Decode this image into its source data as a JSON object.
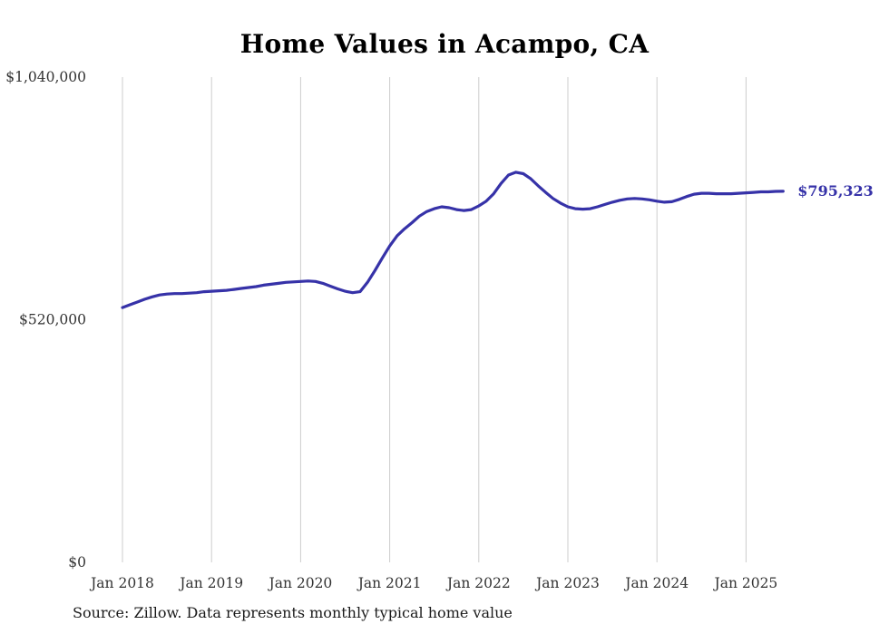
{
  "page": {
    "title": "Home Values in Acampo, CA",
    "source_note": "Source: Zillow. Data represents monthly typical home value"
  },
  "latest": {
    "label": "$795,323",
    "value": 795323
  },
  "colors": {
    "line": "#3632a8",
    "latest_label": "#3632a8",
    "grid": "#cccccc",
    "axis_text": "#333333",
    "title_text": "#000000"
  },
  "chart_data": {
    "type": "line",
    "title": "Home Values in Acampo, CA",
    "xlabel": "",
    "ylabel": "",
    "ylim": [
      0,
      1040000
    ],
    "grid": "vertical-only",
    "legend": "none",
    "x_tick_labels": [
      "Jan 2018",
      "Jan 2019",
      "Jan 2020",
      "Jan 2021",
      "Jan 2022",
      "Jan 2023",
      "Jan 2024",
      "Jan 2025"
    ],
    "y_ticks": [
      {
        "label": "$0",
        "value": 0
      },
      {
        "label": "$520,000",
        "value": 520000
      },
      {
        "label": "$1,040,000",
        "value": 1040000
      }
    ],
    "series": [
      {
        "name": "Monthly typical home value",
        "start": "2018-01",
        "frequency": "monthly",
        "values": [
          546000,
          552000,
          558000,
          564000,
          569000,
          573000,
          575000,
          576000,
          576000,
          577000,
          578000,
          580000,
          581000,
          582000,
          583000,
          585000,
          587000,
          589000,
          591000,
          594000,
          596000,
          598000,
          600000,
          601000,
          602000,
          603000,
          602000,
          598000,
          592000,
          586000,
          581000,
          578000,
          580000,
          600000,
          625000,
          652000,
          678000,
          700000,
          715000,
          728000,
          742000,
          752000,
          758000,
          762000,
          760000,
          756000,
          754000,
          756000,
          764000,
          774000,
          790000,
          812000,
          830000,
          836000,
          833000,
          822000,
          807000,
          793000,
          780000,
          770000,
          762000,
          758000,
          757000,
          758000,
          762000,
          767000,
          772000,
          776000,
          779000,
          780000,
          779000,
          777000,
          774000,
          772000,
          773000,
          778000,
          784000,
          789000,
          791000,
          791000,
          790000,
          790000,
          790000,
          791000,
          792000,
          793000,
          794000,
          794000,
          795000,
          795323
        ]
      }
    ],
    "annotation": {
      "text": "$795,323",
      "attached_to": "last-point"
    }
  }
}
